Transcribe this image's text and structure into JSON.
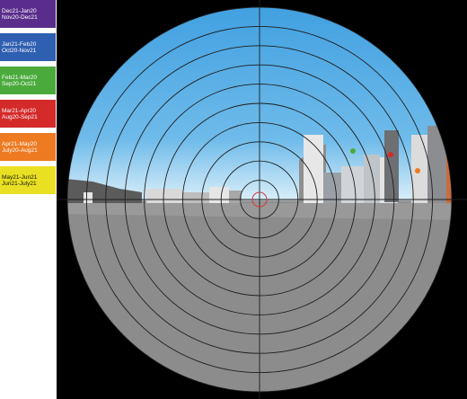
{
  "legend": {
    "items": [
      {
        "line1": "Dec21-Jan20",
        "line2": "Nov20-Dec21",
        "color": "#5a2d8c"
      },
      {
        "line1": "Jan21-Feb20",
        "line2": "Oct20-Nov21",
        "color": "#2f5fb0"
      },
      {
        "line1": "Feb21-Mar20",
        "line2": "Sep20-Oct21",
        "color": "#4aab3c"
      },
      {
        "line1": "Mar21-Apr20",
        "line2": "Aug20-Sep21",
        "color": "#d42a2a"
      },
      {
        "line1": "Apr21-May20",
        "line2": "July20-Aug21",
        "color": "#ee7a22"
      },
      {
        "line1": "May21-Jun21",
        "line2": "Jun21-July21",
        "color": "#e9e023"
      }
    ]
  },
  "viewport": {
    "background": "#000000",
    "sky_top": "#3f9fe0",
    "sky_horizon": "#d8eef9",
    "ground": "#8e8e8e",
    "grid_rings": 10
  }
}
